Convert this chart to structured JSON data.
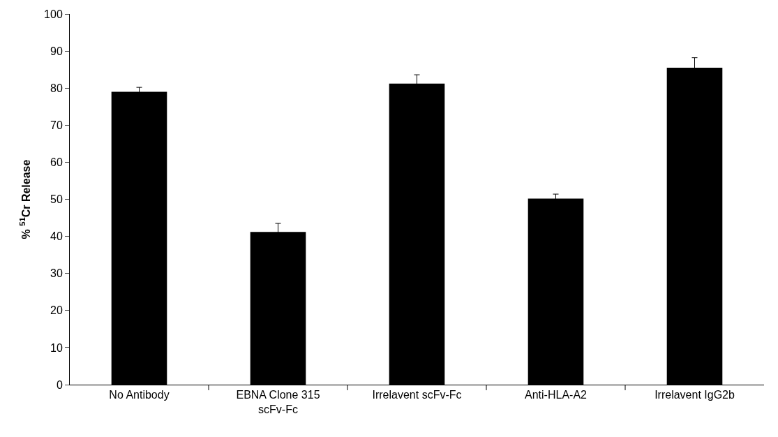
{
  "chart_data": {
    "type": "bar",
    "ylabel": "% $^{51}$Cr Release",
    "categories": [
      "No Antibody",
      "EBNA Clone 315\nscFv-Fc",
      "Irrelavent scFv-Fc",
      "Anti-HLA-A2",
      "Irrelavent IgG2b"
    ],
    "values": [
      79.0,
      41.2,
      81.2,
      50.2,
      85.5
    ],
    "errors": [
      1.2,
      2.3,
      2.4,
      1.2,
      2.7
    ],
    "color": "#000000",
    "ylim": [
      0,
      100
    ],
    "yticks": [
      0,
      10,
      20,
      30,
      40,
      50,
      60,
      70,
      80,
      90,
      100
    ],
    "grid": false,
    "legend": false
  }
}
